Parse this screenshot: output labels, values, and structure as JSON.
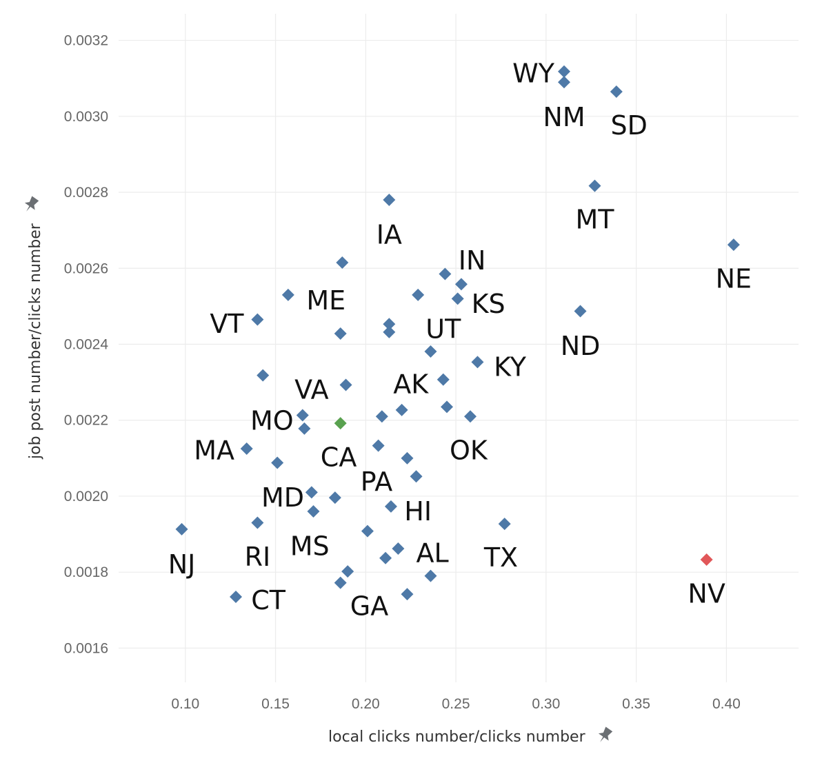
{
  "chart_data": {
    "type": "scatter",
    "xlabel": "local clicks number/clicks number",
    "ylabel": "job post number/clicks number",
    "xlim": [
      0.063,
      0.44
    ],
    "ylim": [
      0.00151,
      0.00327
    ],
    "x_ticks": [
      "0.10",
      "0.15",
      "0.20",
      "0.25",
      "0.30",
      "0.35",
      "0.40"
    ],
    "y_ticks": [
      "0.0016",
      "0.0018",
      "0.0020",
      "0.0022",
      "0.0024",
      "0.0026",
      "0.0028",
      "0.0030",
      "0.0032"
    ],
    "grid": true,
    "legend": "none",
    "colors": {
      "default": "#4e79a7",
      "highlight_low": "#e15759",
      "highlight_ca": "#59a14f"
    },
    "icons": {
      "axis_pin": "pin-icon"
    },
    "points": [
      {
        "x": 0.31,
        "y": 0.003118,
        "color": "default"
      },
      {
        "x": 0.31,
        "y": 0.00309,
        "color": "default"
      },
      {
        "x": 0.339,
        "y": 0.003065,
        "color": "default"
      },
      {
        "x": 0.327,
        "y": 0.002817,
        "color": "default"
      },
      {
        "x": 0.213,
        "y": 0.00278,
        "color": "default"
      },
      {
        "x": 0.404,
        "y": 0.002662,
        "color": "default"
      },
      {
        "x": 0.187,
        "y": 0.002615,
        "color": "default"
      },
      {
        "x": 0.244,
        "y": 0.002585,
        "color": "default"
      },
      {
        "x": 0.253,
        "y": 0.002558,
        "color": "default"
      },
      {
        "x": 0.157,
        "y": 0.00253,
        "color": "default"
      },
      {
        "x": 0.229,
        "y": 0.00253,
        "color": "default"
      },
      {
        "x": 0.251,
        "y": 0.00252,
        "color": "default"
      },
      {
        "x": 0.319,
        "y": 0.002487,
        "color": "default"
      },
      {
        "x": 0.14,
        "y": 0.002465,
        "color": "default"
      },
      {
        "x": 0.213,
        "y": 0.002453,
        "color": "default"
      },
      {
        "x": 0.213,
        "y": 0.002432,
        "color": "default"
      },
      {
        "x": 0.186,
        "y": 0.002428,
        "color": "default"
      },
      {
        "x": 0.236,
        "y": 0.002381,
        "color": "default"
      },
      {
        "x": 0.262,
        "y": 0.002353,
        "color": "default"
      },
      {
        "x": 0.143,
        "y": 0.002318,
        "color": "default"
      },
      {
        "x": 0.243,
        "y": 0.002307,
        "color": "default"
      },
      {
        "x": 0.189,
        "y": 0.002293,
        "color": "default"
      },
      {
        "x": 0.245,
        "y": 0.002235,
        "color": "default"
      },
      {
        "x": 0.22,
        "y": 0.002227,
        "color": "default"
      },
      {
        "x": 0.165,
        "y": 0.002213,
        "color": "default"
      },
      {
        "x": 0.209,
        "y": 0.00221,
        "color": "default"
      },
      {
        "x": 0.258,
        "y": 0.00221,
        "color": "default"
      },
      {
        "x": 0.186,
        "y": 0.002192,
        "color": "highlight_ca"
      },
      {
        "x": 0.166,
        "y": 0.002178,
        "color": "default"
      },
      {
        "x": 0.134,
        "y": 0.002125,
        "color": "default"
      },
      {
        "x": 0.207,
        "y": 0.002133,
        "color": "default"
      },
      {
        "x": 0.223,
        "y": 0.0021,
        "color": "default"
      },
      {
        "x": 0.151,
        "y": 0.002088,
        "color": "default"
      },
      {
        "x": 0.228,
        "y": 0.002052,
        "color": "default"
      },
      {
        "x": 0.17,
        "y": 0.00201,
        "color": "default"
      },
      {
        "x": 0.183,
        "y": 0.001996,
        "color": "default"
      },
      {
        "x": 0.214,
        "y": 0.001973,
        "color": "default"
      },
      {
        "x": 0.171,
        "y": 0.00196,
        "color": "default"
      },
      {
        "x": 0.14,
        "y": 0.00193,
        "color": "default"
      },
      {
        "x": 0.277,
        "y": 0.001927,
        "color": "default"
      },
      {
        "x": 0.098,
        "y": 0.001913,
        "color": "default"
      },
      {
        "x": 0.201,
        "y": 0.001908,
        "color": "default"
      },
      {
        "x": 0.218,
        "y": 0.001862,
        "color": "default"
      },
      {
        "x": 0.211,
        "y": 0.001837,
        "color": "default"
      },
      {
        "x": 0.389,
        "y": 0.001833,
        "color": "highlight_low"
      },
      {
        "x": 0.19,
        "y": 0.001802,
        "color": "default"
      },
      {
        "x": 0.236,
        "y": 0.00179,
        "color": "default"
      },
      {
        "x": 0.186,
        "y": 0.001772,
        "color": "default"
      },
      {
        "x": 0.223,
        "y": 0.001742,
        "color": "default"
      },
      {
        "x": 0.128,
        "y": 0.001735,
        "color": "default"
      }
    ],
    "labels": [
      {
        "text": "WY",
        "x": 0.293,
        "y": 0.003115
      },
      {
        "text": "NM",
        "x": 0.31,
        "y": 0.003
      },
      {
        "text": "SD",
        "x": 0.346,
        "y": 0.002978
      },
      {
        "text": "MT",
        "x": 0.327,
        "y": 0.00273
      },
      {
        "text": "IA",
        "x": 0.213,
        "y": 0.00269
      },
      {
        "text": "IN",
        "x": 0.259,
        "y": 0.002622
      },
      {
        "text": "NE",
        "x": 0.404,
        "y": 0.002574
      },
      {
        "text": "ME",
        "x": 0.178,
        "y": 0.002517
      },
      {
        "text": "KS",
        "x": 0.268,
        "y": 0.002508
      },
      {
        "text": "VT",
        "x": 0.123,
        "y": 0.002455
      },
      {
        "text": "UT",
        "x": 0.243,
        "y": 0.002442
      },
      {
        "text": "ND",
        "x": 0.319,
        "y": 0.002397
      },
      {
        "text": "KY",
        "x": 0.28,
        "y": 0.002342
      },
      {
        "text": "AK",
        "x": 0.225,
        "y": 0.002297
      },
      {
        "text": "VA",
        "x": 0.17,
        "y": 0.002282
      },
      {
        "text": "MO",
        "x": 0.148,
        "y": 0.0022
      },
      {
        "text": "OK",
        "x": 0.257,
        "y": 0.002122
      },
      {
        "text": "MA",
        "x": 0.116,
        "y": 0.002122
      },
      {
        "text": "CA",
        "x": 0.185,
        "y": 0.002104
      },
      {
        "text": "PA",
        "x": 0.206,
        "y": 0.00204
      },
      {
        "text": "MD",
        "x": 0.154,
        "y": 0.001998
      },
      {
        "text": "HI",
        "x": 0.229,
        "y": 0.001962
      },
      {
        "text": "MS",
        "x": 0.169,
        "y": 0.00187
      },
      {
        "text": "AL",
        "x": 0.237,
        "y": 0.001852
      },
      {
        "text": "RI",
        "x": 0.14,
        "y": 0.001842
      },
      {
        "text": "TX",
        "x": 0.275,
        "y": 0.00184
      },
      {
        "text": "NJ",
        "x": 0.098,
        "y": 0.001822
      },
      {
        "text": "NV",
        "x": 0.389,
        "y": 0.001745
      },
      {
        "text": "CT",
        "x": 0.146,
        "y": 0.001728
      },
      {
        "text": "GA",
        "x": 0.202,
        "y": 0.001712
      }
    ]
  }
}
